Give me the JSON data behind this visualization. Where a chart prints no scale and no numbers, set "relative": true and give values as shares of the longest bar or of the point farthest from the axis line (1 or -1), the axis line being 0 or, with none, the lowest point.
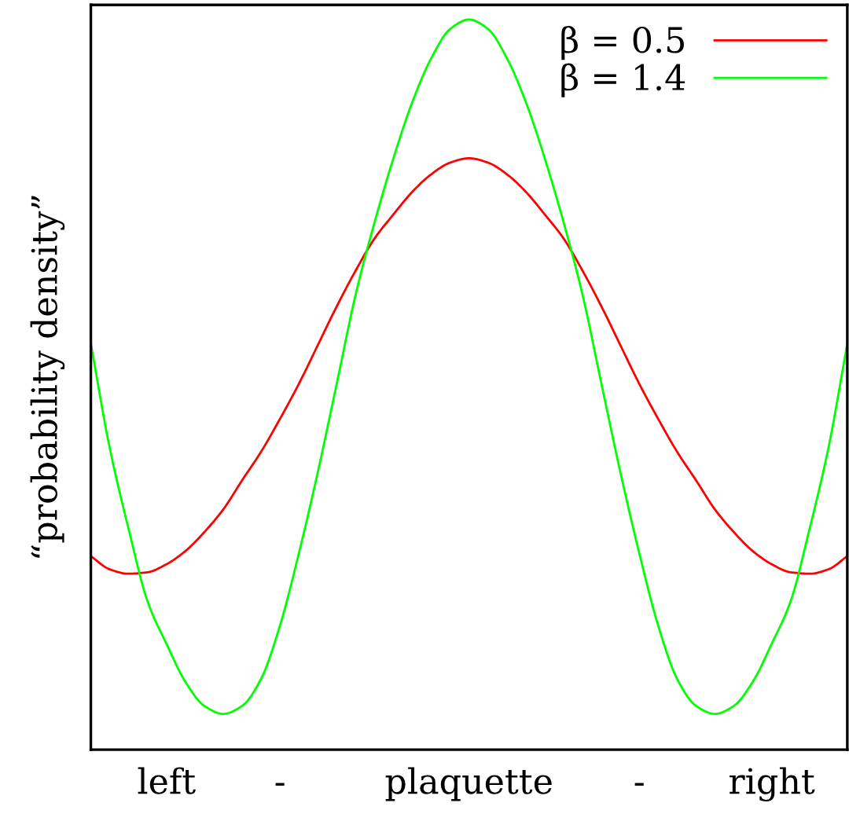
{
  "chart_data": {
    "type": "line",
    "relative": true,
    "ylabel": "“probability density”",
    "categories": [
      null,
      null,
      null,
      null,
      "left",
      null,
      null,
      null,
      null,
      null,
      "-",
      null,
      null,
      null,
      null,
      null,
      null,
      null,
      null,
      null,
      "plaquette",
      null,
      null,
      null,
      null,
      null,
      null,
      null,
      null,
      "-",
      null,
      null,
      null,
      null,
      null,
      null,
      "right",
      null,
      null,
      null,
      null
    ],
    "legend": "top right",
    "grid": false,
    "line_style": "solid",
    "marker": "none",
    "series": [
      {
        "name": "β = 0.5",
        "color": "#ff0000",
        "values": [
          0.265,
          0.247,
          0.241,
          0.243,
          0.254,
          0.272,
          0.298,
          0.329,
          0.369,
          0.408,
          0.453,
          0.501,
          0.554,
          0.607,
          0.656,
          0.7,
          0.733,
          0.764,
          0.788,
          0.804,
          0.81,
          0.804,
          0.788,
          0.764,
          0.733,
          0.7,
          0.656,
          0.607,
          0.554,
          0.501,
          0.453,
          0.408,
          0.369,
          0.329,
          0.298,
          0.272,
          0.254,
          0.243,
          0.241,
          0.247,
          0.265
        ]
      },
      {
        "name": "β = 1.4",
        "color": "#00ff00",
        "values": [
          0.556,
          0.413,
          0.302,
          0.203,
          0.145,
          0.093,
          0.06,
          0.049,
          0.06,
          0.097,
          0.17,
          0.269,
          0.38,
          0.501,
          0.623,
          0.722,
          0.81,
          0.887,
          0.947,
          0.987,
          1.0,
          0.987,
          0.947,
          0.887,
          0.81,
          0.722,
          0.623,
          0.501,
          0.38,
          0.269,
          0.17,
          0.097,
          0.06,
          0.049,
          0.06,
          0.093,
          0.145,
          0.203,
          0.302,
          0.413,
          0.556
        ]
      }
    ]
  }
}
